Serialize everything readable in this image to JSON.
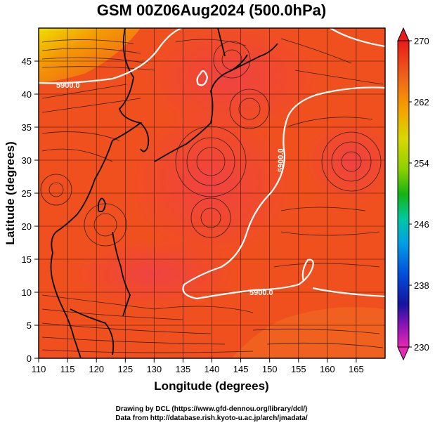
{
  "title": "GSM 00Z06Aug2024 (500.0hPa)",
  "xlabel": "Longitude (degrees)",
  "ylabel": "Latitude  (degrees)",
  "credits": [
    "Drawing by DCL (https://www.gfd-dennou.org/library/dcl/)",
    "Data from http://database.rish.kyoto-u.ac.jp/arch/jmadata/"
  ],
  "map": {
    "lon_range": [
      110,
      170
    ],
    "lat_range": [
      0,
      50
    ],
    "x_ticks": [
      "110",
      "115",
      "120",
      "125",
      "130",
      "135",
      "140",
      "145",
      "150",
      "155",
      "160",
      "165"
    ],
    "y_ticks": [
      "0",
      "5",
      "10",
      "15",
      "20",
      "25",
      "30",
      "35",
      "40",
      "45"
    ],
    "grid": true,
    "contour_labels": [
      "5900.0",
      "5900.0",
      "5900.0"
    ],
    "field": "temperature",
    "streamlines": true
  },
  "colorbar": {
    "ticks": [
      "270",
      "262",
      "254",
      "246",
      "238",
      "230"
    ],
    "colors": [
      "#e81a1a",
      "#f0641a",
      "#f5a000",
      "#d8d800",
      "#8cd000",
      "#14b414",
      "#00c8a0",
      "#00a0e6",
      "#0050dc",
      "#1414a0",
      "#8c14b4",
      "#e628b4"
    ]
  }
}
